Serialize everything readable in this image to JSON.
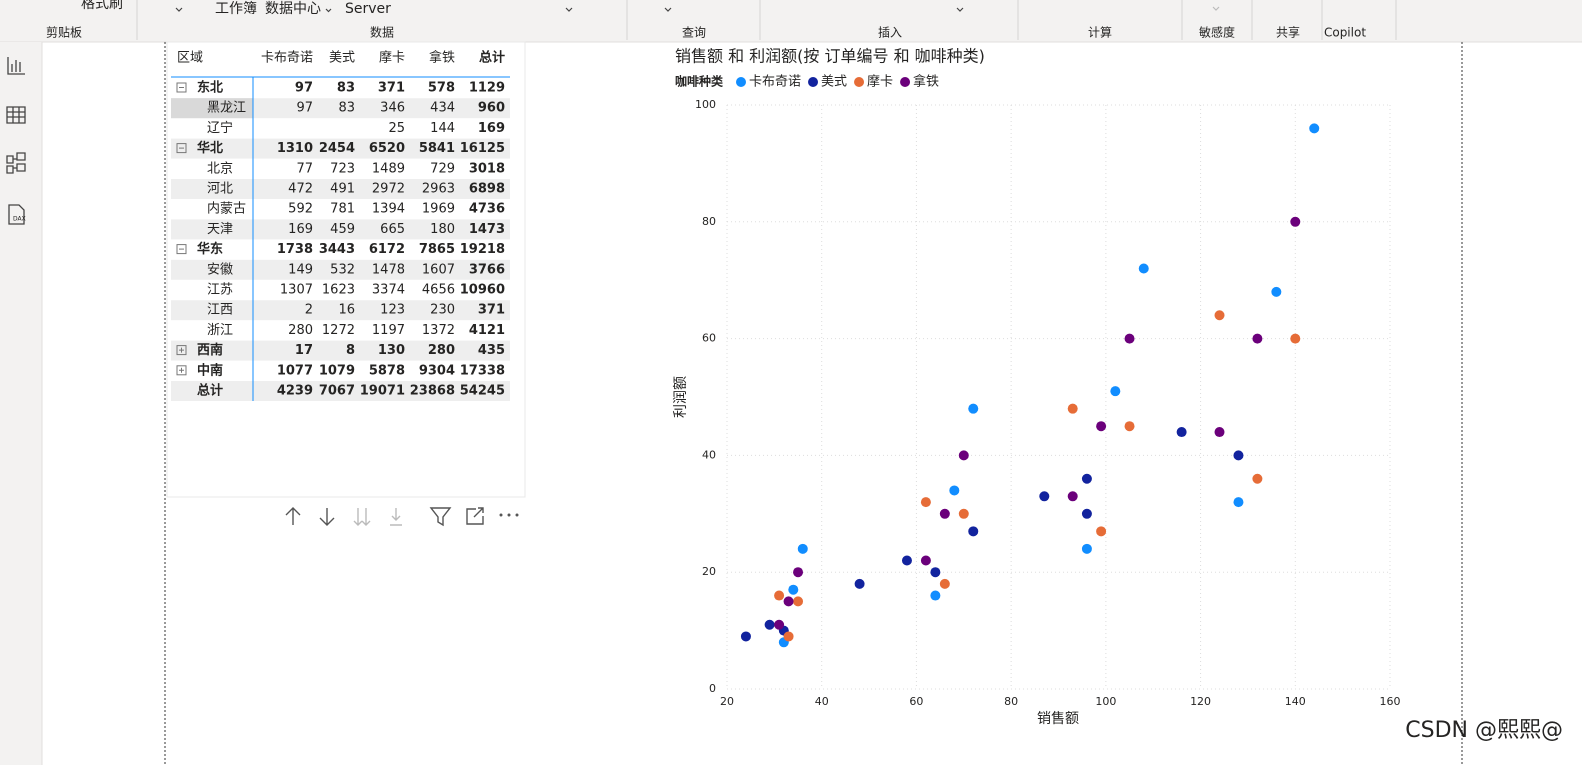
{
  "ribbon": {
    "items": [
      "格式刷",
      "工作簿",
      "数据中心",
      "Server"
    ],
    "groups": [
      "剪贴板",
      "数据",
      "查询",
      "插入",
      "计算",
      "敏感度",
      "共享",
      "Copilot"
    ]
  },
  "sidebar": {
    "icon_text": "DAX"
  },
  "table": {
    "header": [
      "区域",
      "卡布奇诺",
      "美式",
      "摩卡",
      "拿铁",
      "总计"
    ],
    "rows": [
      {
        "cells": [
          "东北",
          97,
          83,
          371,
          578,
          1129
        ],
        "group": "minus",
        "bold": true
      },
      {
        "cells": [
          "黑龙江",
          97,
          83,
          346,
          434,
          960
        ],
        "selected": true
      },
      {
        "cells": [
          "辽宁",
          null,
          null,
          25,
          144,
          169
        ]
      },
      {
        "cells": [
          "华北",
          1310,
          2454,
          6520,
          5841,
          16125
        ],
        "group": "minus",
        "bold": true
      },
      {
        "cells": [
          "北京",
          77,
          723,
          1489,
          729,
          3018
        ]
      },
      {
        "cells": [
          "河北",
          472,
          491,
          2972,
          2963,
          6898
        ]
      },
      {
        "cells": [
          "内蒙古",
          592,
          781,
          1394,
          1969,
          4736
        ]
      },
      {
        "cells": [
          "天津",
          169,
          459,
          665,
          180,
          1473
        ]
      },
      {
        "cells": [
          "华东",
          1738,
          3443,
          6172,
          7865,
          19218
        ],
        "group": "minus",
        "bold": true
      },
      {
        "cells": [
          "安徽",
          149,
          532,
          1478,
          1607,
          3766
        ]
      },
      {
        "cells": [
          "江苏",
          1307,
          1623,
          3374,
          4656,
          10960
        ]
      },
      {
        "cells": [
          "江西",
          2,
          16,
          123,
          230,
          371
        ]
      },
      {
        "cells": [
          "浙江",
          280,
          1272,
          1197,
          1372,
          4121
        ]
      },
      {
        "cells": [
          "西南",
          17,
          8,
          130,
          280,
          435
        ],
        "group": "plus",
        "bold": true
      },
      {
        "cells": [
          "中南",
          1077,
          1079,
          5878,
          9304,
          17338
        ],
        "group": "plus",
        "bold": true
      },
      {
        "cells": [
          "总计",
          4239,
          7067,
          19071,
          23868,
          54245
        ],
        "bold": true
      }
    ]
  },
  "chart_data": {
    "type": "scatter",
    "title": "销售额 和 利润额(按 订单编号 和 咖啡种类)",
    "legend_title": "咖啡种类",
    "xlabel": "销售额",
    "ylabel": "利润额",
    "xlim": [
      20,
      160
    ],
    "ylim": [
      0,
      100
    ],
    "xticks": [
      20,
      40,
      60,
      80,
      100,
      120,
      140,
      160
    ],
    "yticks": [
      0,
      20,
      40,
      60,
      80,
      100
    ],
    "grid": true,
    "series": [
      {
        "name": "卡布奇诺",
        "color": "#118dff",
        "x": [
          144,
          108,
          136,
          102,
          72,
          68,
          128,
          96,
          36,
          64,
          34,
          32
        ],
        "values": [
          96,
          72,
          68,
          51,
          48,
          34,
          32,
          24,
          24,
          16,
          17,
          8
        ]
      },
      {
        "name": "美式",
        "color": "#12239e",
        "x": [
          24,
          29,
          32,
          48,
          58,
          64,
          72,
          87,
          96,
          96,
          116,
          128
        ],
        "values": [
          9,
          11,
          10,
          18,
          22,
          20,
          27,
          33,
          36,
          30,
          44,
          40
        ]
      },
      {
        "name": "摩卡",
        "color": "#e66c37",
        "x": [
          31,
          35,
          33,
          66,
          62,
          70,
          93,
          99,
          105,
          124,
          132,
          140
        ],
        "values": [
          16,
          15,
          9,
          18,
          32,
          30,
          48,
          27,
          45,
          64,
          36,
          60
        ]
      },
      {
        "name": "拿铁",
        "color": "#6b007b",
        "x": [
          31,
          33,
          35,
          62,
          66,
          70,
          93,
          99,
          105,
          124,
          132,
          140
        ],
        "values": [
          11,
          15,
          20,
          22,
          30,
          40,
          33,
          45,
          60,
          44,
          60,
          80
        ]
      }
    ]
  },
  "watermark": "CSDN @熙熙@"
}
